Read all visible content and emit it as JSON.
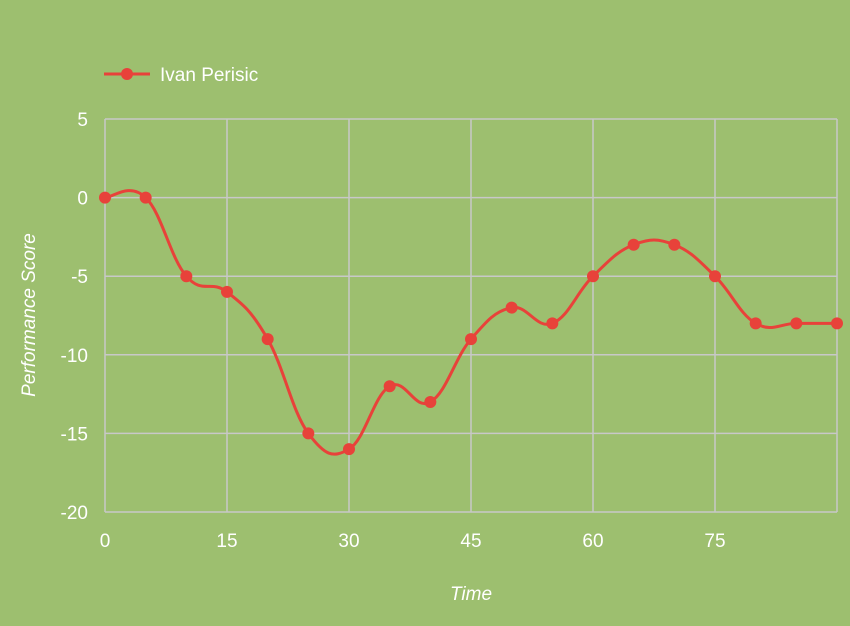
{
  "chart_data": {
    "type": "line",
    "xlabel": "Time",
    "ylabel": "Performance Score",
    "xlim": [
      0,
      90
    ],
    "ylim": [
      -20,
      5
    ],
    "x_ticks": [
      0,
      15,
      30,
      45,
      60,
      75
    ],
    "y_ticks": [
      5,
      0,
      -5,
      -10,
      -15,
      -20
    ],
    "grid": true,
    "legend_position": "top-left",
    "series": [
      {
        "name": "Ivan Perisic",
        "color": "#e8423a",
        "smooth": true,
        "x": [
          0,
          5,
          10,
          15,
          20,
          25,
          30,
          35,
          40,
          45,
          50,
          55,
          60,
          65,
          70,
          75,
          80,
          85,
          90
        ],
        "y": [
          0,
          0,
          -5,
          -6,
          -9,
          -15,
          -16,
          -12,
          -13,
          -9,
          -7,
          -8,
          -5,
          -3,
          -3,
          -5,
          -8,
          -8,
          -8
        ]
      }
    ]
  }
}
